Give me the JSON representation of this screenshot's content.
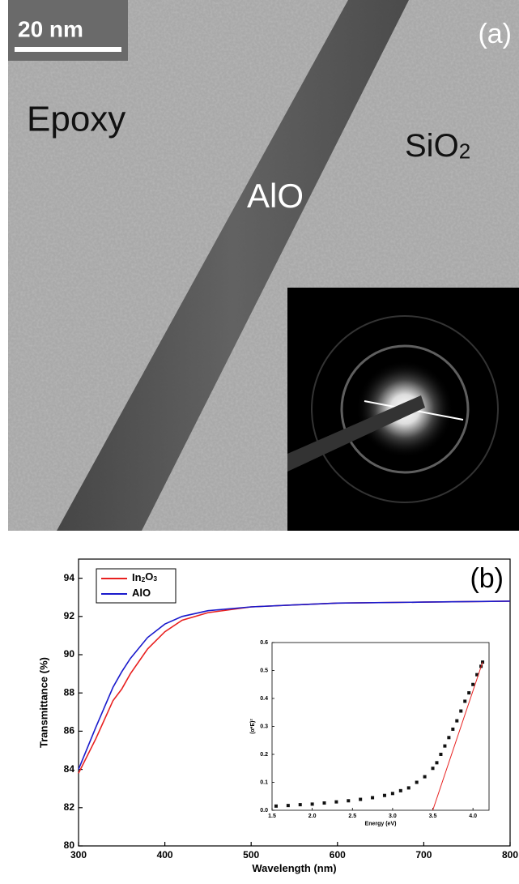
{
  "image_panel": {
    "scale_bar": "20 nm",
    "panel_label": "(a)",
    "labels": [
      "Epoxy",
      "SiO2",
      "AlO"
    ]
  },
  "chart_data": [
    {
      "type": "line",
      "annotation": "(b)",
      "xlabel": "Wavelength (nm)",
      "ylabel": "Transmittance (%)",
      "xlim": [
        300,
        800
      ],
      "xticks": [
        300,
        400,
        500,
        600,
        700,
        800
      ],
      "ylim": [
        80,
        95
      ],
      "yticks": [
        80,
        82,
        84,
        86,
        88,
        90,
        92,
        94
      ],
      "legend": "upper left",
      "x": [
        300,
        320,
        340,
        350,
        360,
        380,
        400,
        420,
        450,
        500,
        550,
        600,
        700,
        800
      ],
      "series": [
        {
          "name": "In2O3",
          "color": "#e8201f",
          "values": [
            83.8,
            85.6,
            87.6,
            88.2,
            89.0,
            90.3,
            91.2,
            91.8,
            92.2,
            92.5,
            92.6,
            92.7,
            92.75,
            92.8
          ]
        },
        {
          "name": "AlO",
          "color": "#1a1acc",
          "values": [
            84.0,
            86.2,
            88.3,
            89.1,
            89.8,
            90.9,
            91.6,
            92.0,
            92.3,
            92.5,
            92.6,
            92.7,
            92.75,
            92.8
          ]
        }
      ]
    },
    {
      "type": "scatter",
      "xlabel": "Energy (eV)",
      "ylabel": "(α*E)²",
      "xlim": [
        1.5,
        4.2
      ],
      "xticks": [
        1.5,
        2.0,
        2.5,
        3.0,
        3.5,
        4.0
      ],
      "ylim": [
        0,
        0.6
      ],
      "yticks": [
        0.0,
        0.1,
        0.2,
        0.3,
        0.4,
        0.5,
        0.6
      ],
      "series": [
        {
          "kind": "markers",
          "color": "#111111",
          "x": [
            1.55,
            1.7,
            1.85,
            2.0,
            2.15,
            2.3,
            2.45,
            2.6,
            2.75,
            2.9,
            3.0,
            3.1,
            3.2,
            3.3,
            3.4,
            3.5,
            3.55,
            3.6,
            3.65,
            3.7,
            3.75,
            3.8,
            3.85,
            3.9,
            3.95,
            4.0,
            4.05,
            4.1,
            4.12
          ],
          "values": [
            0.015,
            0.017,
            0.02,
            0.022,
            0.026,
            0.03,
            0.034,
            0.039,
            0.045,
            0.053,
            0.06,
            0.07,
            0.08,
            0.1,
            0.12,
            0.15,
            0.17,
            0.2,
            0.23,
            0.26,
            0.29,
            0.32,
            0.355,
            0.39,
            0.42,
            0.45,
            0.485,
            0.515,
            0.53
          ]
        },
        {
          "kind": "line",
          "color": "#e8201f",
          "x": [
            3.5,
            4.12
          ],
          "values": [
            0,
            0.53
          ]
        }
      ]
    }
  ]
}
